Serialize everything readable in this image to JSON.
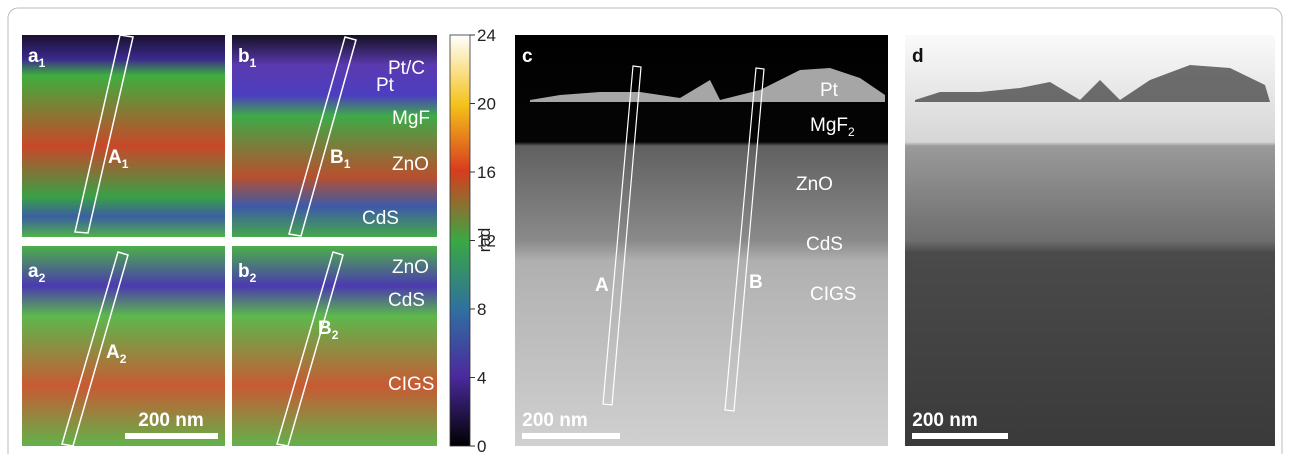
{
  "colorbar": {
    "label": "rad",
    "lim": [
      0,
      24
    ],
    "ticks": [
      0,
      4,
      8,
      12,
      16,
      20,
      24
    ]
  },
  "panels": {
    "a1": {
      "label": "a",
      "sub": "1",
      "box_label": "A",
      "box_sub": "1"
    },
    "b1": {
      "label": "b",
      "sub": "1",
      "box_label": "B",
      "box_sub": "1",
      "layers": [
        "Pt/C",
        "Pt",
        "MgF",
        "ZnO",
        "CdS"
      ]
    },
    "a2": {
      "label": "a",
      "sub": "2",
      "box_label": "A",
      "box_sub": "2",
      "scale_bar": "200 nm"
    },
    "b2": {
      "label": "b",
      "sub": "2",
      "box_label": "B",
      "box_sub": "2",
      "layers": [
        "ZnO",
        "CdS",
        "CIGS"
      ]
    },
    "c": {
      "label": "c",
      "layers": [
        "Pt",
        "MgF",
        "ZnO",
        "CdS",
        "CIGS"
      ],
      "mgf_sub": "2",
      "box_a": "A",
      "box_b": "B",
      "scale_bar": "200 nm"
    },
    "d": {
      "label": "d",
      "scale_bar": "200 nm"
    }
  }
}
